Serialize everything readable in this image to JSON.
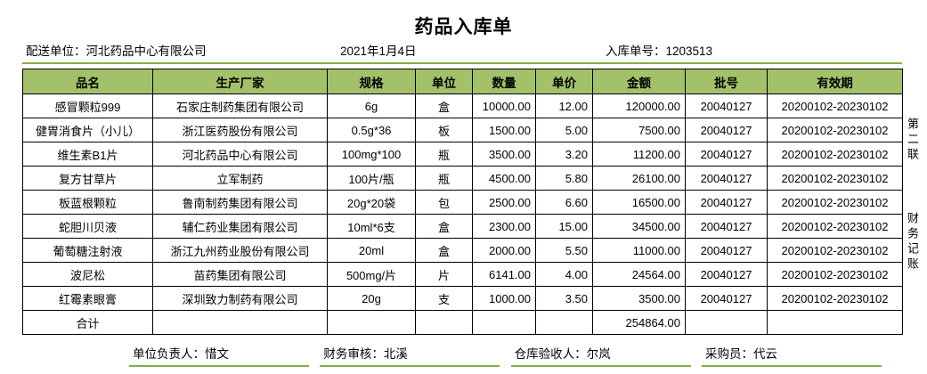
{
  "title": "药品入库单",
  "info": {
    "supplier": "配送单位：河北药品中心有限公司",
    "date": "2021年1月4日",
    "order_no": "入库单号：1203513"
  },
  "table": {
    "headers": [
      "品名",
      "生产厂家",
      "规格",
      "单位",
      "数量",
      "单价",
      "金额",
      "批号",
      "有效期"
    ],
    "rows": [
      [
        "感冒颗粒999",
        "石家庄制药集团有限公司",
        "6g",
        "盒",
        "10000.00",
        "12.00",
        "120000.00",
        "20040127",
        "20200102-20230102"
      ],
      [
        "健胃消食片（小儿）",
        "浙江医药股份有限公司",
        "0.5g*36",
        "板",
        "1500.00",
        "5.00",
        "7500.00",
        "20040127",
        "20200102-20230102"
      ],
      [
        "维生素B1片",
        "河北药品中心有限公司",
        "100mg*100",
        "瓶",
        "3500.00",
        "3.20",
        "11200.00",
        "20040127",
        "20200102-20230102"
      ],
      [
        "复方甘草片",
        "立军制药",
        "100片/瓶",
        "瓶",
        "4500.00",
        "5.80",
        "26100.00",
        "20040127",
        "20200102-20230102"
      ],
      [
        "板蓝根颗粒",
        "鲁南制药集团有限公司",
        "20g*20袋",
        "包",
        "2500.00",
        "6.60",
        "16500.00",
        "20040127",
        "20200102-20230102"
      ],
      [
        "蛇胆川贝液",
        "辅仁药业集团有限公司",
        "10ml*6支",
        "盒",
        "2300.00",
        "15.00",
        "34500.00",
        "20040127",
        "20200102-20230102"
      ],
      [
        "葡萄糖注射液",
        "浙江九州药业股份有限公司",
        "20ml",
        "盒",
        "2000.00",
        "5.50",
        "11000.00",
        "20040127",
        "20200102-20230102"
      ],
      [
        "波尼松",
        "苗药集团有限公司",
        "500mg/片",
        "片",
        "6141.00",
        "4.00",
        "24564.00",
        "20040127",
        "20200102-20230102"
      ],
      [
        "红霉素眼膏",
        "深圳致力制药有限公司",
        "20g",
        "支",
        "1000.00",
        "3.50",
        "3500.00",
        "20040127",
        "20200102-20230102"
      ]
    ],
    "total_label": "合计",
    "total_amount": "254864.00"
  },
  "side_labels": [
    "第二联",
    "财务记账"
  ],
  "footer": [
    {
      "label": "单位负责人：",
      "value": "惜文"
    },
    {
      "label": "财务审核：",
      "value": "北溪"
    },
    {
      "label": "仓库验收人：",
      "value": "尔岚"
    },
    {
      "label": "采购员：",
      "value": "代云"
    }
  ],
  "colors": {
    "accent_green": "#A3C169",
    "line_green": "#86AC46"
  }
}
